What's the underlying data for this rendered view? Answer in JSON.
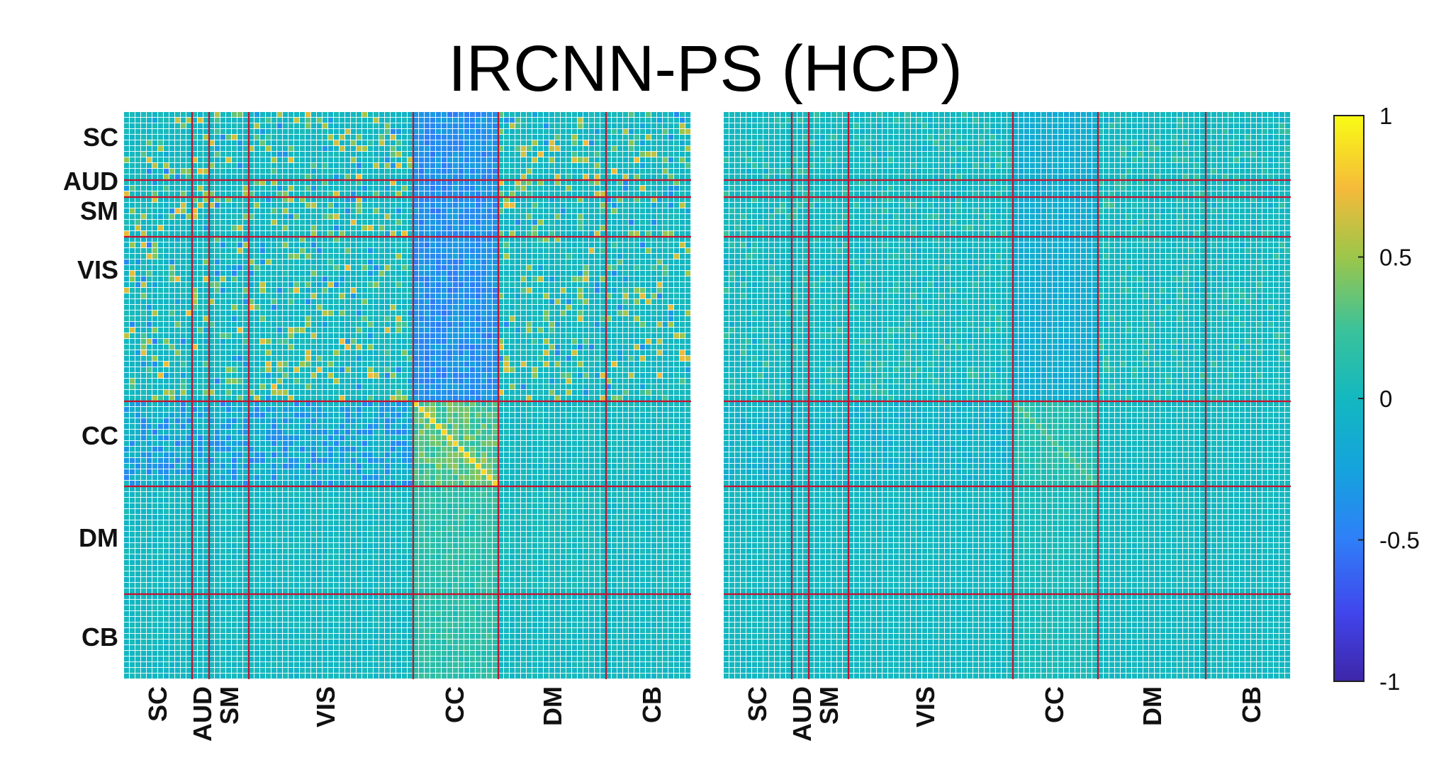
{
  "chart_data": {
    "type": "heatmap",
    "title": "IRCNN-PS (HCP)",
    "colormap": "parula",
    "clim": [
      -1,
      1
    ],
    "colorbar_ticks": [
      "1",
      "0.5",
      "0",
      "-0.5",
      "-1"
    ],
    "n_nodes": 100,
    "networks": [
      {
        "label": "SC",
        "start": 0,
        "end": 12
      },
      {
        "label": "AUD",
        "start": 12,
        "end": 15
      },
      {
        "label": "SM",
        "start": 15,
        "end": 22
      },
      {
        "label": "VIS",
        "start": 22,
        "end": 51
      },
      {
        "label": "CC",
        "start": 51,
        "end": 66
      },
      {
        "label": "DM",
        "start": 66,
        "end": 85
      },
      {
        "label": "CB",
        "start": 85,
        "end": 100
      }
    ],
    "boundary_color": "#c8102e",
    "panels": [
      {
        "name": "",
        "overall_strength": 1.0
      },
      {
        "name": "",
        "overall_strength": 0.35
      }
    ]
  }
}
